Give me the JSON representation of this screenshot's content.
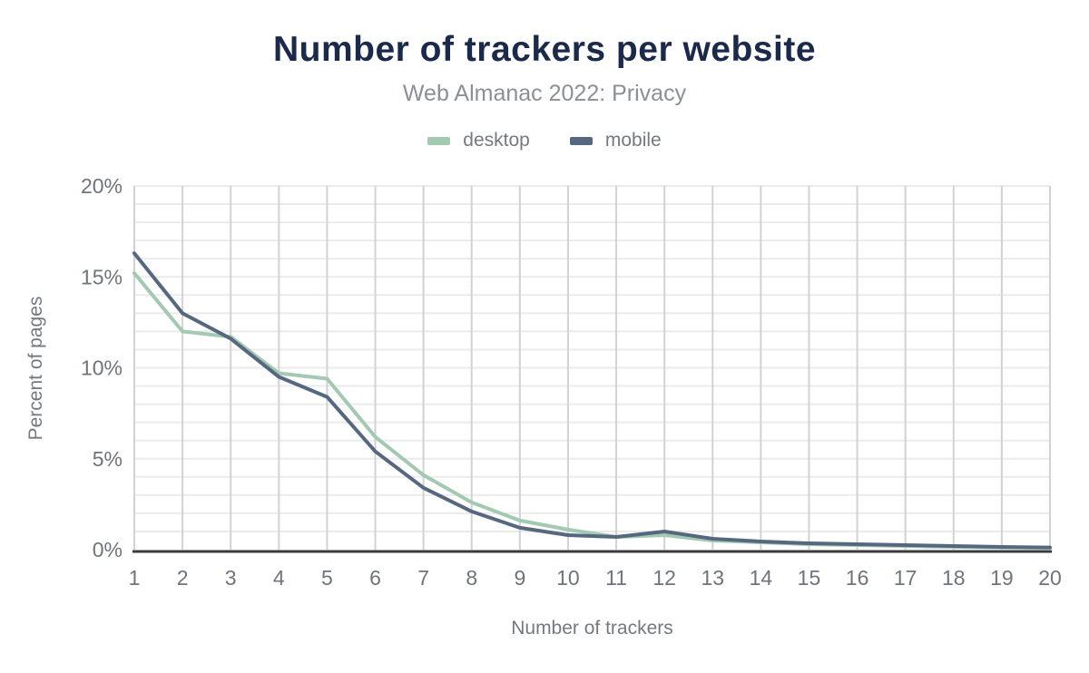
{
  "title": "Number of trackers per website",
  "subtitle": "Web Almanac 2022: Privacy",
  "colors": {
    "title_text": "#1b2a4a",
    "subtitle_text": "#8b9097",
    "axis_line": "#3a3b3f",
    "grid_vertical": "#d2d2d2",
    "grid_horizontal": "#ebebeb",
    "tick_text": "#6f737b",
    "axis_label_text": "#75797f",
    "desktop_series": "#a3c9b2",
    "mobile_series": "#56687f"
  },
  "chart_data": {
    "type": "line",
    "title": "Number of trackers per website",
    "subtitle": "Web Almanac 2022: Privacy",
    "xlabel": "Number of trackers",
    "ylabel": "Percent of pages",
    "x": [
      1,
      2,
      3,
      4,
      5,
      6,
      7,
      8,
      9,
      10,
      11,
      12,
      13,
      14,
      15,
      16,
      17,
      18,
      19,
      20
    ],
    "xtick_labels": [
      "1",
      "2",
      "3",
      "4",
      "5",
      "6",
      "7",
      "8",
      "9",
      "10",
      "11",
      "12",
      "13",
      "14",
      "15",
      "16",
      "17",
      "18",
      "19",
      "20"
    ],
    "series": [
      {
        "name": "desktop",
        "color": "#a3c9b2",
        "values": [
          15.2,
          12.0,
          11.7,
          9.7,
          9.4,
          6.2,
          4.1,
          2.6,
          1.6,
          1.1,
          0.7,
          0.8,
          0.5,
          0.4,
          0.3,
          0.25,
          0.2,
          0.15,
          0.12,
          0.1
        ]
      },
      {
        "name": "mobile",
        "color": "#56687f",
        "values": [
          16.3,
          13.0,
          11.6,
          9.5,
          8.4,
          5.4,
          3.4,
          2.1,
          1.2,
          0.8,
          0.7,
          1.0,
          0.6,
          0.45,
          0.35,
          0.3,
          0.25,
          0.2,
          0.15,
          0.12
        ]
      }
    ],
    "ylim": [
      0,
      20
    ],
    "yticks": [
      0,
      5,
      10,
      15,
      20
    ],
    "ytick_labels": [
      "0%",
      "5%",
      "10%",
      "15%",
      "20%"
    ],
    "minor_y_grid_step": 1,
    "grid": "both",
    "legend_position": "top"
  }
}
